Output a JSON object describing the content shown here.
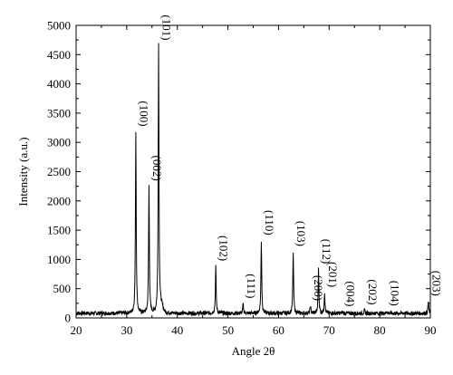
{
  "chart_data": {
    "type": "line",
    "title": "",
    "xlabel": "Angle 2θ",
    "ylabel": "Intensity (a.u.)",
    "xlim": [
      20,
      90
    ],
    "ylim": [
      0,
      5000
    ],
    "x_ticks": [
      20,
      30,
      40,
      50,
      60,
      70,
      80,
      90
    ],
    "y_ticks": [
      0,
      500,
      1000,
      1500,
      2000,
      2500,
      3000,
      3500,
      4000,
      4500,
      5000
    ],
    "grid": false,
    "baseline": 80,
    "series": [
      {
        "peaks": [
          {
            "x": 31.8,
            "y": 3180
          },
          {
            "x": 34.4,
            "y": 2250
          },
          {
            "x": 36.3,
            "y": 4650
          },
          {
            "x": 47.6,
            "y": 880
          },
          {
            "x": 53.0,
            "y": 240
          },
          {
            "x": 56.6,
            "y": 1320
          },
          {
            "x": 62.9,
            "y": 1130
          },
          {
            "x": 66.3,
            "y": 200
          },
          {
            "x": 67.9,
            "y": 830
          },
          {
            "x": 69.1,
            "y": 430
          },
          {
            "x": 72.6,
            "y": 100
          },
          {
            "x": 77.0,
            "y": 130
          },
          {
            "x": 81.4,
            "y": 110
          },
          {
            "x": 89.6,
            "y": 280
          }
        ]
      }
    ],
    "annotations": [
      {
        "text": "(100)",
        "x": 31.8,
        "y": 3180,
        "rotation": 90
      },
      {
        "text": "(002)",
        "x": 34.4,
        "y": 2250,
        "rotation": 90
      },
      {
        "text": "(101)",
        "x": 36.3,
        "y": 4650,
        "rotation": 90
      },
      {
        "text": "(102)",
        "x": 47.6,
        "y": 880,
        "rotation": 90
      },
      {
        "text": "(111)",
        "x": 53.0,
        "y": 240,
        "rotation": 90
      },
      {
        "text": "(110)",
        "x": 56.6,
        "y": 1320,
        "rotation": 90
      },
      {
        "text": "(103)",
        "x": 62.9,
        "y": 1130,
        "rotation": 90
      },
      {
        "text": "(200)",
        "x": 66.3,
        "y": 200,
        "rotation": 90
      },
      {
        "text": "(112)",
        "x": 67.9,
        "y": 830,
        "rotation": 90
      },
      {
        "text": "(201)",
        "x": 69.1,
        "y": 430,
        "rotation": 90
      },
      {
        "text": "(004)",
        "x": 72.6,
        "y": 100,
        "rotation": 90
      },
      {
        "text": "(202)",
        "x": 77.0,
        "y": 130,
        "rotation": 90
      },
      {
        "text": "(104)",
        "x": 81.4,
        "y": 110,
        "rotation": 90
      },
      {
        "text": "(203)",
        "x": 89.6,
        "y": 280,
        "rotation": 90
      }
    ],
    "line_color": "#000000"
  }
}
